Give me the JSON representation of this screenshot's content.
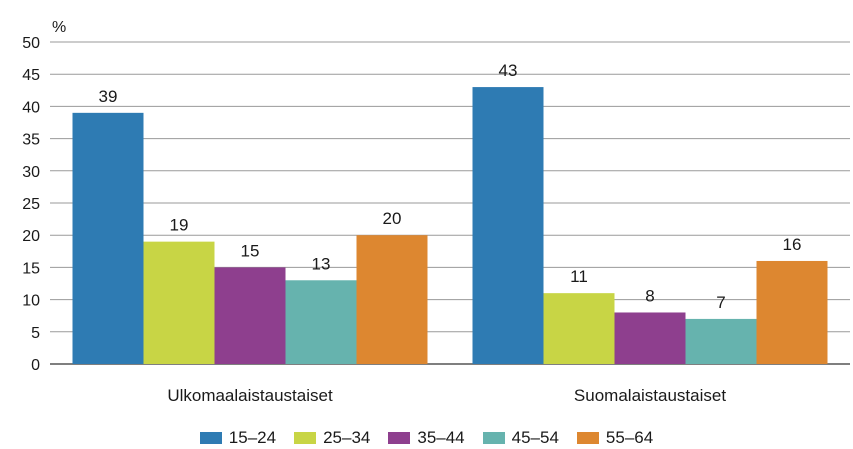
{
  "chart_data": {
    "type": "bar",
    "title": "",
    "xlabel": "",
    "ylabel": "%",
    "ylim": [
      0,
      50
    ],
    "yticks": [
      0,
      5,
      10,
      15,
      20,
      25,
      30,
      35,
      40,
      45,
      50
    ],
    "grid": true,
    "legend_position": "bottom",
    "categories": [
      "Ulkomaalaistaustaiset",
      "Suomalaistaustaiset"
    ],
    "series": [
      {
        "name": "15–24",
        "color": "#2e7bb3",
        "values": [
          39,
          43
        ]
      },
      {
        "name": "25–34",
        "color": "#c8d545",
        "values": [
          19,
          11
        ]
      },
      {
        "name": "35–44",
        "color": "#8e3f8e",
        "values": [
          15,
          8
        ]
      },
      {
        "name": "45–54",
        "color": "#66b3ae",
        "values": [
          13,
          7
        ]
      },
      {
        "name": "55–64",
        "color": "#dd8730",
        "values": [
          20,
          16
        ]
      }
    ]
  }
}
